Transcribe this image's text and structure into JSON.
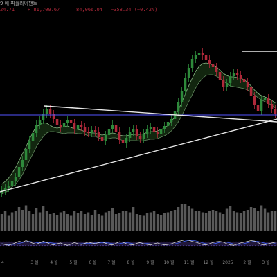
{
  "header": {
    "title": "9 에 피플라이팬트",
    "prev_value": "24.71",
    "ohlc": "H 81,709.67",
    "last": "84,066.04",
    "change": "−358.34 (−0.42%)"
  },
  "colors": {
    "background": "#000000",
    "candle_up": "#2e8a3b",
    "candle_down": "#b0293a",
    "cloud_line": "#8fc08a",
    "cloud_fill": "#12260f",
    "trendline": "#e8e8e8",
    "horizontal_level": "#5555ff",
    "volume": "#6f6f6f",
    "rsi_line": "#d8d8d8",
    "rsi_signal": "#4466ff",
    "rsi_band": "#3a2a6a"
  },
  "chart_data": {
    "type": "line",
    "title": "",
    "xlabel": "",
    "ylabel": "",
    "grid": false,
    "x_ticks": [
      "4",
      "3 월",
      "4 월",
      "5 월",
      "6 월",
      "7 월",
      "8 월",
      "9 월",
      "10 월",
      "11 월",
      "12 월",
      "2025",
      "2 월",
      "3 월"
    ],
    "series": [
      {
        "role": "price_close",
        "values": [
          275,
          271,
          268,
          262,
          256,
          241,
          231,
          215,
          203,
          192,
          180,
          173,
          164,
          158,
          165,
          172,
          180,
          184,
          177,
          173,
          178,
          187,
          181,
          183,
          190,
          192,
          188,
          190,
          198,
          204,
          195,
          186,
          180,
          190,
          202,
          207,
          199,
          190,
          187,
          196,
          200,
          193,
          187,
          183,
          190,
          193,
          186,
          182,
          176,
          172,
          160,
          148,
          131,
          112,
          98,
          85,
          79,
          76,
          80,
          86,
          92,
          97,
          104,
          116,
          125,
          120,
          110,
          106,
          109,
          114,
          118,
          125,
          139,
          152,
          160,
          145,
          142,
          150,
          157,
          165
        ]
      },
      {
        "role": "volume",
        "values": [
          0.5,
          0.6,
          0.45,
          0.55,
          0.6,
          0.7,
          0.62,
          0.75,
          0.58,
          0.5,
          0.68,
          0.55,
          0.72,
          0.6,
          0.5,
          0.52,
          0.48,
          0.55,
          0.6,
          0.5,
          0.45,
          0.58,
          0.52,
          0.6,
          0.5,
          0.55,
          0.48,
          0.62,
          0.5,
          0.45,
          0.55,
          0.6,
          0.68,
          0.5,
          0.52,
          0.58,
          0.6,
          0.55,
          0.7,
          0.5,
          0.48,
          0.45,
          0.52,
          0.55,
          0.6,
          0.5,
          0.48,
          0.52,
          0.55,
          0.58,
          0.62,
          0.7,
          0.78,
          0.8,
          0.72,
          0.65,
          0.6,
          0.58,
          0.55,
          0.52,
          0.6,
          0.62,
          0.58,
          0.55,
          0.5,
          0.65,
          0.72,
          0.6,
          0.55,
          0.52,
          0.58,
          0.62,
          0.7,
          0.68,
          0.6,
          0.75,
          0.65,
          0.55,
          0.6,
          0.58
        ]
      },
      {
        "role": "rsi",
        "values": [
          50,
          45,
          42,
          48,
          55,
          62,
          58,
          66,
          60,
          52,
          48,
          55,
          62,
          56,
          48,
          44,
          50,
          54,
          46,
          42,
          48,
          56,
          50,
          46,
          52,
          58,
          54,
          50,
          56,
          60,
          52,
          46,
          44,
          52,
          60,
          58,
          50,
          46,
          44,
          52,
          56,
          50,
          46,
          44,
          50,
          54,
          48,
          44,
          46,
          50,
          56,
          62,
          66,
          70,
          68,
          62,
          58,
          52,
          46,
          44,
          50,
          56,
          60,
          62,
          58,
          50,
          44,
          42,
          48,
          54,
          58,
          62,
          66,
          64,
          56,
          46,
          44,
          50,
          54,
          58
        ]
      }
    ],
    "cloud_upper": [
      266,
      262,
      257,
      250,
      242,
      232,
      222,
      212,
      201,
      191,
      183,
      180,
      177,
      178,
      181,
      184,
      185,
      184,
      183,
      182,
      184,
      186,
      187,
      188,
      190,
      191,
      192,
      192,
      194,
      195,
      194,
      193,
      192,
      193,
      195,
      196,
      196,
      195,
      194,
      194,
      194,
      193,
      191,
      190,
      190,
      189,
      187,
      185,
      181,
      176,
      168,
      159,
      148,
      136,
      124,
      113,
      103,
      96,
      92,
      91,
      92,
      94,
      97,
      101,
      106,
      109,
      111,
      111,
      112,
      113,
      115,
      119,
      124,
      130,
      135,
      138,
      140,
      142,
      145,
      149
    ],
    "cloud_lower": [
      280,
      278,
      275,
      270,
      266,
      260,
      252,
      242,
      232,
      222,
      212,
      204,
      197,
      192,
      190,
      190,
      191,
      192,
      193,
      192,
      192,
      192,
      193,
      193,
      194,
      196,
      197,
      197,
      199,
      201,
      201,
      200,
      199,
      199,
      201,
      203,
      204,
      203,
      203,
      203,
      204,
      203,
      202,
      201,
      201,
      200,
      198,
      196,
      193,
      189,
      183,
      176,
      167,
      157,
      147,
      137,
      127,
      119,
      113,
      109,
      108,
      108,
      110,
      113,
      117,
      121,
      124,
      125,
      126,
      127,
      128,
      130,
      133,
      137,
      141,
      144,
      147,
      149,
      152,
      156
    ],
    "trendlines": [
      {
        "from": [
          64,
          153
        ],
        "to": [
          400,
          176
        ]
      },
      {
        "from": [
          0,
          277
        ],
        "to": [
          400,
          172
        ]
      },
      {
        "from": [
          350,
          74
        ],
        "to": [
          400,
          74
        ]
      }
    ],
    "horizontal_levels": [
      166
    ],
    "rsi_band": [
      40,
      60
    ],
    "value_scale": "screen_y_units"
  }
}
